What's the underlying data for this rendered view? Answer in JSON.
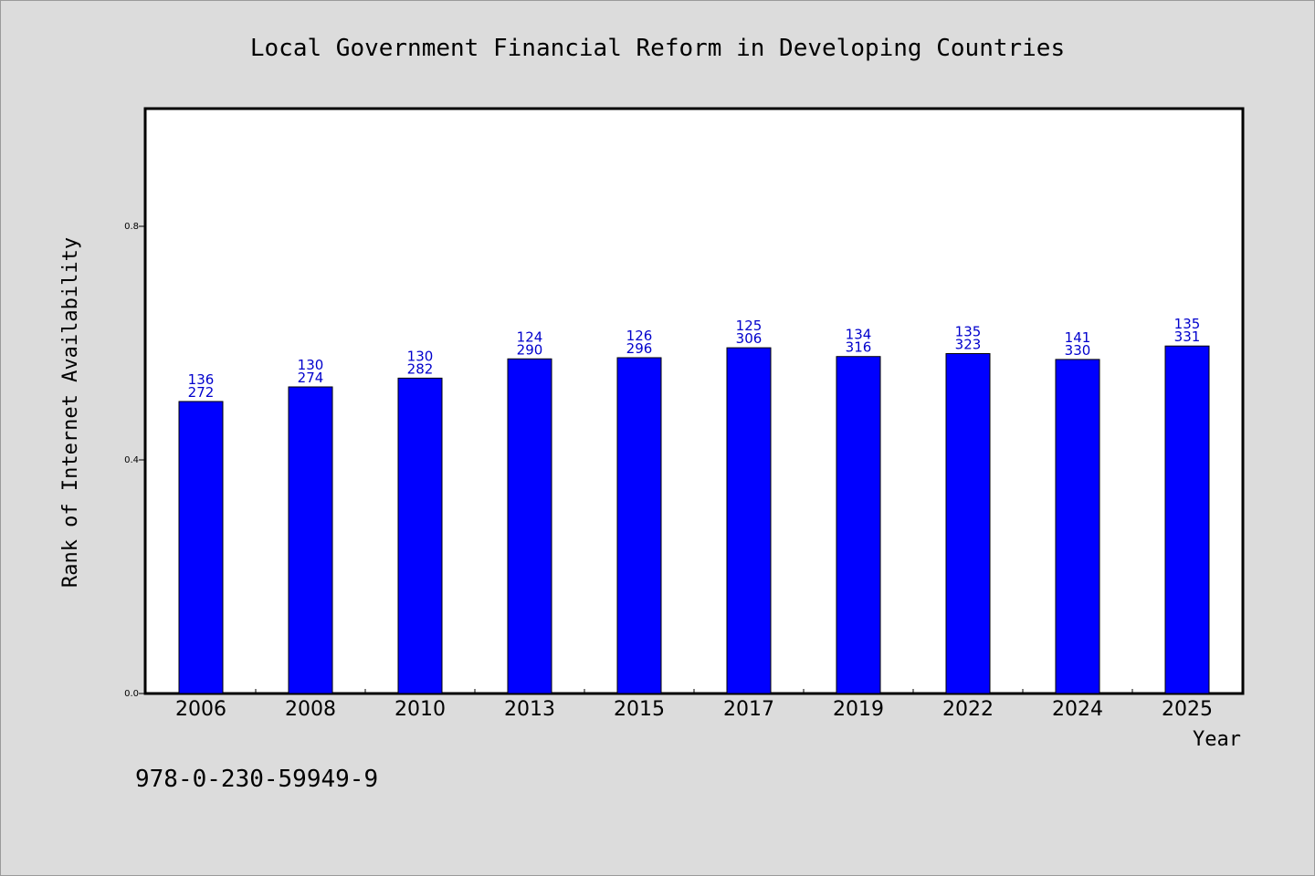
{
  "chart_data": {
    "type": "bar",
    "title": "Local Government Financial Reform in Developing Countries",
    "xlabel": "Year",
    "ylabel": "Rank of Internet Availability",
    "categories": [
      "2006",
      "2008",
      "2010",
      "2013",
      "2015",
      "2017",
      "2019",
      "2022",
      "2024",
      "2025"
    ],
    "values": [
      0.5,
      0.525,
      0.54,
      0.573,
      0.575,
      0.592,
      0.577,
      0.582,
      0.572,
      0.595
    ],
    "annotations_top": [
      "136",
      "130",
      "130",
      "124",
      "126",
      "125",
      "134",
      "135",
      "141",
      "135"
    ],
    "annotations_bottom": [
      "272",
      "274",
      "282",
      "290",
      "296",
      "306",
      "316",
      "323",
      "330",
      "331"
    ],
    "ylim": [
      0,
      1.0
    ],
    "yticks": [
      "0.0",
      "0.4",
      "0.8"
    ],
    "grid": false,
    "legend": "none",
    "bar_color": "#0000ff",
    "label_color": "#0000cc"
  },
  "footer": {
    "isbn": "978-0-230-59949-9"
  }
}
